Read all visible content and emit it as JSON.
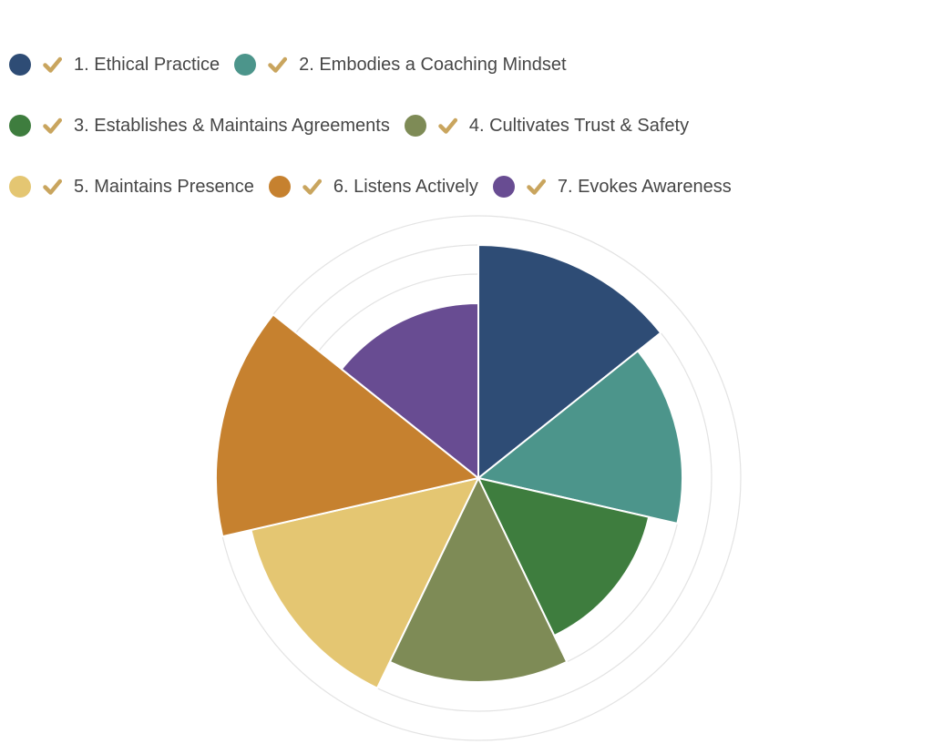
{
  "page": {
    "background": "#ffffff"
  },
  "legend": {
    "position": "top-left",
    "check_color": "#c9a55e",
    "text_color": "#464646",
    "rows": [
      [
        {
          "label": "1. Ethical Practice",
          "color": "#2e4c75"
        },
        {
          "label": "2. Embodies a Coaching Mindset",
          "color": "#4c958b"
        }
      ],
      [
        {
          "label": "3. Establishes & Maintains Agreements",
          "color": "#3e7d3e"
        },
        {
          "label": "4. Cultivates Trust & Safety",
          "color": "#7e8b56"
        }
      ],
      [
        {
          "label": "5. Maintains Presence",
          "color": "#e4c672"
        },
        {
          "label": "6. Listens Actively",
          "color": "#c6812f"
        },
        {
          "label": "7. Evokes Awareness",
          "color": "#684c92"
        }
      ]
    ]
  },
  "chart_data": {
    "type": "polar_area",
    "title": "",
    "categories": [
      "1. Ethical Practice",
      "2. Embodies a Coaching Mindset",
      "3. Establishes & Maintains Agreements",
      "4. Cultivates Trust & Safety",
      "5. Maintains Presence",
      "6. Listens Actively",
      "7. Evokes Awareness"
    ],
    "values": [
      8,
      7,
      6,
      7,
      8,
      9,
      6
    ],
    "scale": {
      "min": 0,
      "max": 9,
      "gridline_values": [
        7,
        8,
        9
      ]
    },
    "start_angle_deg": 0,
    "direction": "clockwise",
    "grid_on": true,
    "grid_color": "#e3e3e3",
    "slice_border_color": "#ffffff",
    "colors": [
      "#2e4c75",
      "#4c958b",
      "#3e7d3e",
      "#7e8b56",
      "#e4c672",
      "#c6812f",
      "#684c92"
    ],
    "legend_position": "top-left"
  }
}
